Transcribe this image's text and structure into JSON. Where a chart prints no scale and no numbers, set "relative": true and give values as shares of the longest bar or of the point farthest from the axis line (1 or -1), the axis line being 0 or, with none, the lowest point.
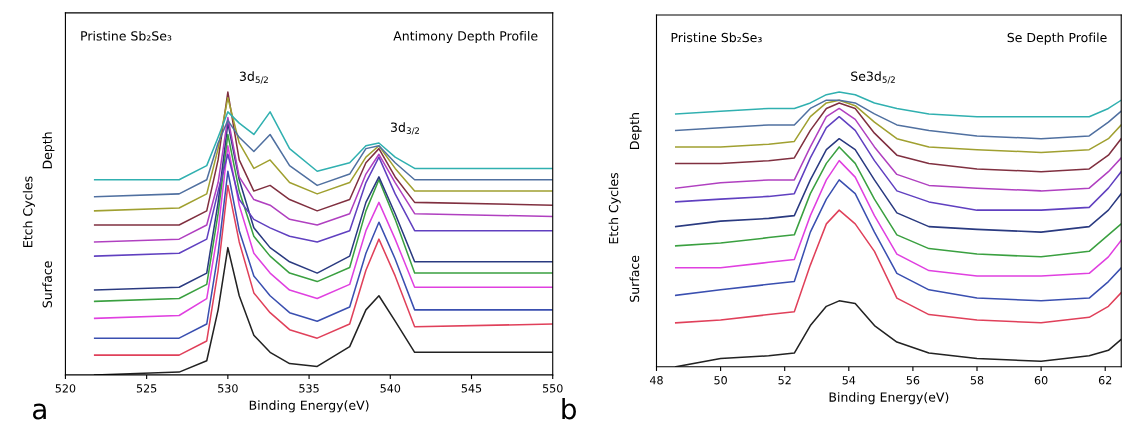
{
  "chart_data": [
    {
      "type": "line",
      "relative": true,
      "tick_labels": "x",
      "xlabel": "Binding Energy(eV)",
      "ylabel": "Etch Cycles",
      "xlim": [
        520,
        550
      ],
      "xticks": [
        520,
        525,
        530,
        535,
        540,
        545,
        550
      ],
      "x": [
        521.8,
        527,
        528.7,
        529.4,
        530,
        530.7,
        531.6,
        532.6,
        533.8,
        535.5,
        537.5,
        538.5,
        539.3,
        540.3,
        541.5,
        550
      ],
      "annotations": [
        "a",
        "Pristine Sb₂Se₃",
        "Antimony Depth Profile",
        "Surface",
        "Depth",
        {
          "text": "3d$_{5/2}$",
          "x": 530,
          "y": 1.0
        },
        {
          "text": "3d$_{3/2}$",
          "x": 539.3,
          "y": 0.82
        }
      ],
      "series": [
        {
          "color": "#222222",
          "values": [
            0,
            0.01,
            0.05,
            0.23,
            0.45,
            0.28,
            0.14,
            0.08,
            0.04,
            0.03,
            0.1,
            0.23,
            0.28,
            0.19,
            0.08,
            0.08
          ]
        },
        {
          "color": "#e0405a",
          "values": [
            0.07,
            0.07,
            0.12,
            0.37,
            0.67,
            0.47,
            0.29,
            0.22,
            0.16,
            0.13,
            0.18,
            0.37,
            0.48,
            0.35,
            0.17,
            0.18
          ]
        },
        {
          "color": "#3a4fb0",
          "values": [
            0.13,
            0.13,
            0.18,
            0.43,
            0.72,
            0.51,
            0.35,
            0.28,
            0.22,
            0.19,
            0.24,
            0.43,
            0.54,
            0.41,
            0.23,
            0.23
          ]
        },
        {
          "color": "#e040e0",
          "values": [
            0.2,
            0.21,
            0.27,
            0.51,
            0.81,
            0.6,
            0.43,
            0.36,
            0.3,
            0.27,
            0.32,
            0.51,
            0.61,
            0.48,
            0.31,
            0.31
          ]
        },
        {
          "color": "#3aa040",
          "values": [
            0.26,
            0.27,
            0.32,
            0.57,
            0.85,
            0.65,
            0.49,
            0.42,
            0.36,
            0.33,
            0.38,
            0.58,
            0.69,
            0.55,
            0.36,
            0.36
          ]
        },
        {
          "color": "#2a3a80",
          "values": [
            0.3,
            0.31,
            0.36,
            0.61,
            0.89,
            0.69,
            0.52,
            0.45,
            0.4,
            0.36,
            0.42,
            0.61,
            0.7,
            0.57,
            0.4,
            0.4
          ]
        },
        {
          "color": "#6040c0",
          "values": [
            0.42,
            0.43,
            0.48,
            0.65,
            0.78,
            0.62,
            0.55,
            0.52,
            0.49,
            0.47,
            0.51,
            0.68,
            0.77,
            0.64,
            0.51,
            0.51
          ]
        },
        {
          "color": "#b040c0",
          "values": [
            0.47,
            0.48,
            0.53,
            0.68,
            0.91,
            0.7,
            0.62,
            0.6,
            0.55,
            0.53,
            0.57,
            0.71,
            0.78,
            0.68,
            0.57,
            0.56
          ]
        },
        {
          "color": "#803040",
          "values": [
            0.53,
            0.53,
            0.58,
            0.76,
            1.0,
            0.76,
            0.65,
            0.67,
            0.62,
            0.58,
            0.62,
            0.75,
            0.8,
            0.7,
            0.61,
            0.6
          ]
        },
        {
          "color": "#a0a030",
          "values": [
            0.58,
            0.59,
            0.64,
            0.8,
            0.98,
            0.82,
            0.73,
            0.76,
            0.68,
            0.64,
            0.68,
            0.77,
            0.81,
            0.73,
            0.65,
            0.65
          ]
        },
        {
          "color": "#5070a0",
          "values": [
            0.63,
            0.64,
            0.69,
            0.82,
            0.9,
            0.84,
            0.79,
            0.85,
            0.74,
            0.67,
            0.71,
            0.8,
            0.81,
            0.75,
            0.69,
            0.69
          ]
        },
        {
          "color": "#30b0b0",
          "values": [
            0.69,
            0.69,
            0.74,
            0.84,
            0.93,
            0.89,
            0.85,
            0.93,
            0.8,
            0.72,
            0.75,
            0.81,
            0.82,
            0.77,
            0.73,
            0.73
          ]
        }
      ]
    },
    {
      "type": "line",
      "relative": true,
      "tick_labels": "x",
      "xlabel": "Binding Energy(eV)",
      "ylabel": "Etch Cycles",
      "xlim": [
        48,
        62.5
      ],
      "xticks": [
        48,
        50,
        52,
        54,
        56,
        58,
        60,
        62
      ],
      "x": [
        48.6,
        50,
        51.5,
        52.3,
        52.8,
        53.3,
        53.7,
        54.2,
        54.8,
        55.5,
        56.5,
        58,
        60,
        61.5,
        62.1,
        62.5
      ],
      "annotations": [
        "b",
        "Pristine Sb₂Se₃",
        "Se Depth Profile",
        "Surface",
        "Depth",
        {
          "text": "Se3d$_{5/2}$",
          "x": 53.7,
          "y": 1.0
        }
      ],
      "series": [
        {
          "color": "#222222",
          "values": [
            0,
            0.03,
            0.04,
            0.05,
            0.15,
            0.22,
            0.24,
            0.23,
            0.15,
            0.09,
            0.05,
            0.03,
            0.02,
            0.04,
            0.06,
            0.1
          ]
        },
        {
          "color": "#e0405a",
          "values": [
            0.16,
            0.17,
            0.19,
            0.2,
            0.37,
            0.52,
            0.57,
            0.52,
            0.42,
            0.25,
            0.19,
            0.17,
            0.16,
            0.18,
            0.22,
            0.27
          ]
        },
        {
          "color": "#3a4fb0",
          "values": [
            0.26,
            0.28,
            0.3,
            0.31,
            0.49,
            0.61,
            0.68,
            0.63,
            0.49,
            0.34,
            0.28,
            0.25,
            0.24,
            0.25,
            0.31,
            0.36
          ]
        },
        {
          "color": "#e040e0",
          "values": [
            0.36,
            0.36,
            0.38,
            0.39,
            0.55,
            0.68,
            0.75,
            0.69,
            0.55,
            0.41,
            0.35,
            0.33,
            0.33,
            0.34,
            0.4,
            0.46
          ]
        },
        {
          "color": "#3aa040",
          "values": [
            0.44,
            0.45,
            0.47,
            0.48,
            0.63,
            0.74,
            0.8,
            0.74,
            0.61,
            0.48,
            0.43,
            0.41,
            0.4,
            0.42,
            0.48,
            0.52
          ]
        },
        {
          "color": "#2a3a80",
          "values": [
            0.51,
            0.53,
            0.54,
            0.55,
            0.68,
            0.79,
            0.83,
            0.79,
            0.68,
            0.56,
            0.51,
            0.5,
            0.49,
            0.51,
            0.57,
            0.63
          ]
        },
        {
          "color": "#6040c0",
          "values": [
            0.6,
            0.61,
            0.62,
            0.63,
            0.76,
            0.87,
            0.91,
            0.86,
            0.75,
            0.64,
            0.6,
            0.57,
            0.57,
            0.58,
            0.65,
            0.71
          ]
        },
        {
          "color": "#b040c0",
          "values": [
            0.65,
            0.67,
            0.68,
            0.68,
            0.8,
            0.91,
            0.94,
            0.9,
            0.8,
            0.7,
            0.66,
            0.65,
            0.64,
            0.65,
            0.71,
            0.76
          ]
        },
        {
          "color": "#803040",
          "values": [
            0.74,
            0.74,
            0.75,
            0.76,
            0.86,
            0.94,
            0.96,
            0.94,
            0.85,
            0.77,
            0.74,
            0.72,
            0.71,
            0.72,
            0.77,
            0.83
          ]
        },
        {
          "color": "#a0a030",
          "values": [
            0.8,
            0.8,
            0.81,
            0.82,
            0.91,
            0.96,
            0.97,
            0.95,
            0.89,
            0.83,
            0.8,
            0.79,
            0.78,
            0.79,
            0.83,
            0.88
          ]
        },
        {
          "color": "#5070a0",
          "values": [
            0.86,
            0.87,
            0.88,
            0.88,
            0.94,
            0.97,
            0.97,
            0.96,
            0.92,
            0.88,
            0.86,
            0.84,
            0.83,
            0.84,
            0.89,
            0.93
          ]
        },
        {
          "color": "#30b0b0",
          "values": [
            0.92,
            0.93,
            0.94,
            0.94,
            0.96,
            0.99,
            1.0,
            0.99,
            0.96,
            0.94,
            0.92,
            0.91,
            0.91,
            0.91,
            0.94,
            0.97
          ]
        }
      ]
    }
  ]
}
